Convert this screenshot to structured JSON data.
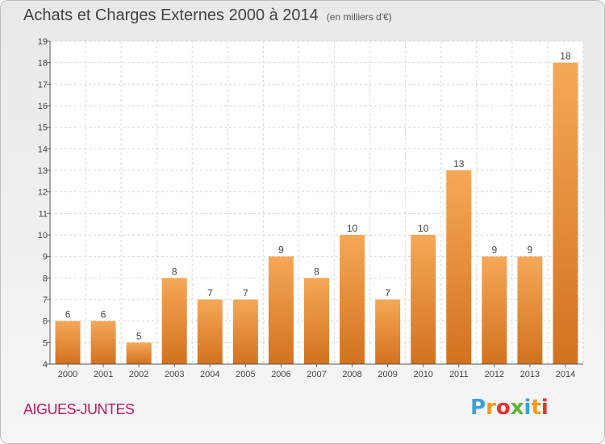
{
  "header": {
    "title": "Achats et Charges Externes 2000 à 2014",
    "units": "(en milliers d'€)"
  },
  "footer": {
    "place": "AIGUES-JUNTES",
    "logo": "Proxiti"
  },
  "colors": {
    "bar_light": "#f6a857",
    "bar_dark": "#d2721f",
    "place_text": "#c0165e",
    "logo_letters": [
      "#3f9fd8",
      "#f39a1c",
      "#e3342f",
      "#5db33a",
      "#3f9fd8",
      "#f39a1c",
      "#e3342f"
    ]
  },
  "chart_data": {
    "type": "bar",
    "title": "Achats et Charges Externes 2000 à 2014",
    "ylabel": "",
    "xlabel": "",
    "categories": [
      "2000",
      "2001",
      "2002",
      "2003",
      "2004",
      "2005",
      "2006",
      "2007",
      "2008",
      "2009",
      "2010",
      "2011",
      "2012",
      "2013",
      "2014"
    ],
    "values": [
      6,
      6,
      5,
      8,
      7,
      7,
      9,
      8,
      10,
      7,
      10,
      13,
      9,
      9,
      18
    ],
    "ylim": [
      4,
      19
    ],
    "yticks": [
      "4",
      "5",
      "6",
      "7",
      "8",
      "9",
      "10",
      "11",
      "12",
      "13",
      "14",
      "15",
      "16",
      "17",
      "18",
      "19"
    ],
    "grid": true,
    "data_labels": true
  }
}
